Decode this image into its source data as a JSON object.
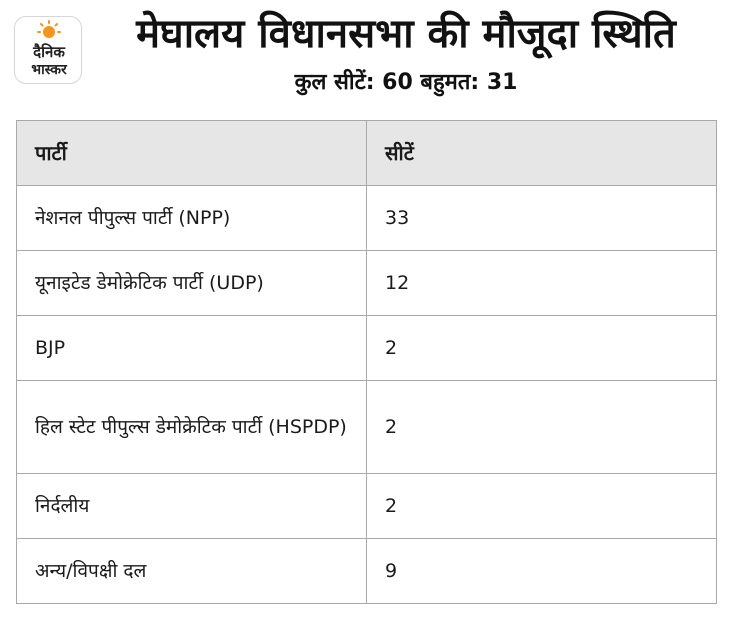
{
  "logo": {
    "line1": "दैनिक",
    "line2": "भास्कर",
    "sun_color": "#f7941d"
  },
  "header": {
    "title": "मेघालय विधानसभा की मौजूदा स्थिति",
    "subtitle": "कुल सीटें: 60 बहुमत: 31"
  },
  "table": {
    "columns": [
      "पार्टी",
      "सीटें"
    ],
    "rows": [
      {
        "party": "नेशनल पीपुल्स पार्टी (NPP)",
        "seats": "33"
      },
      {
        "party": "यूनाइटेड डेमोक्रेटिक पार्टी (UDP)",
        "seats": "12"
      },
      {
        "party": "BJP",
        "seats": "2"
      },
      {
        "party": "हिल स्टेट पीपुल्स डेमोक्रेटिक पार्टी (HSPDP)",
        "seats": "2"
      },
      {
        "party": "निर्दलीय",
        "seats": "2"
      },
      {
        "party": "अन्य/विपक्षी दल",
        "seats": "9"
      }
    ]
  }
}
